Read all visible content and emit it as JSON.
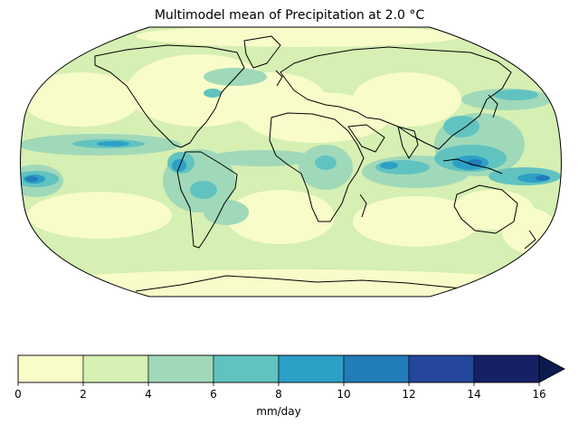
{
  "map": {
    "title": "Multimodel mean of Precipitation at 2.0 °C",
    "projection": "Robinson",
    "variable": "Precipitation",
    "coastlines": true
  },
  "colorbar": {
    "label": "mm/day",
    "levels": [
      0,
      2,
      4,
      6,
      8,
      10,
      12,
      14,
      16
    ],
    "tick_labels": [
      "0",
      "2",
      "4",
      "6",
      "8",
      "10",
      "12",
      "14",
      "16"
    ],
    "colors": [
      "#f8fcc9",
      "#d6efb3",
      "#a0d9b9",
      "#61c3c0",
      "#2ca0c6",
      "#217cb8",
      "#24469b",
      "#162064"
    ],
    "extend": "max",
    "extend_color": "#0b1b4f"
  }
}
